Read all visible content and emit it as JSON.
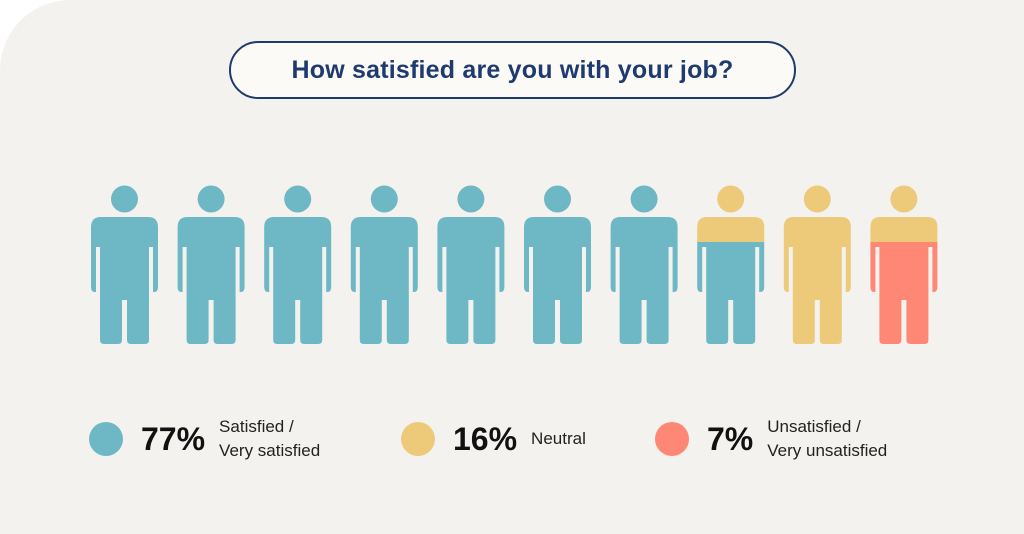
{
  "title": "How satisfied are you with your job?",
  "colors": {
    "satisfied": "#6db8c4",
    "neutral": "#edc97a",
    "unsatisfied": "#ff8775",
    "title_border": "#1f3a6e",
    "background": "#f4f2ee"
  },
  "chart_data": {
    "type": "pictogram",
    "total_figures": 10,
    "categories": [
      "Satisfied / Very satisfied",
      "Neutral",
      "Unsatisfied / Very unsatisfied"
    ],
    "values": [
      77,
      16,
      7
    ],
    "unit": "%"
  },
  "legend": [
    {
      "key": "satisfied",
      "pct": "77%",
      "label_line1": "Satisfied /",
      "label_line2": "Very satisfied"
    },
    {
      "key": "neutral",
      "pct": "16%",
      "label_line1": "Neutral",
      "label_line2": ""
    },
    {
      "key": "unsatisfied",
      "pct": "7%",
      "label_line1": "Unsatisfied /",
      "label_line2": "Very unsatisfied"
    }
  ]
}
